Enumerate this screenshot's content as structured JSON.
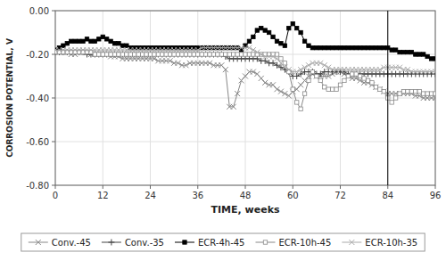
{
  "chart_data": {
    "type": "line",
    "x_label": "TIME, weeks",
    "y_label": "CORROSION POTENTIAL, V",
    "xlim": [
      0,
      96
    ],
    "ylim": [
      -0.8,
      0.0
    ],
    "xticks": [
      0,
      12,
      24,
      36,
      48,
      60,
      72,
      84,
      96
    ],
    "yticks": [
      {
        "value": 0.0,
        "label": "0.00"
      },
      {
        "value": -0.2,
        "label": "-0.20"
      },
      {
        "value": -0.4,
        "label": "-0.40"
      },
      {
        "value": -0.6,
        "label": "-0.60"
      },
      {
        "value": -0.8,
        "label": "-0.80"
      }
    ],
    "grid": true,
    "legend": "bottom",
    "vline_x": 84,
    "x": [
      0,
      1,
      2,
      3,
      4,
      5,
      6,
      7,
      8,
      9,
      10,
      11,
      12,
      13,
      14,
      15,
      16,
      17,
      18,
      19,
      20,
      21,
      22,
      23,
      24,
      25,
      26,
      27,
      28,
      29,
      30,
      31,
      32,
      33,
      34,
      35,
      36,
      37,
      38,
      39,
      40,
      41,
      42,
      43,
      44,
      45,
      46,
      47,
      48,
      49,
      50,
      51,
      52,
      53,
      54,
      55,
      56,
      57,
      58,
      59,
      60,
      61,
      62,
      63,
      64,
      65,
      66,
      67,
      68,
      69,
      70,
      71,
      72,
      73,
      74,
      75,
      76,
      77,
      78,
      79,
      80,
      81,
      82,
      83,
      84,
      85,
      86,
      87,
      88,
      89,
      90,
      91,
      92,
      93,
      94,
      95,
      96
    ],
    "series": [
      {
        "name": "Conv.-45",
        "color": "#888888",
        "marker": "x",
        "line_style": "solid",
        "values": [
          -0.19,
          -0.19,
          -0.19,
          -0.19,
          -0.2,
          -0.2,
          -0.19,
          -0.19,
          -0.19,
          -0.2,
          -0.2,
          -0.2,
          -0.2,
          -0.2,
          -0.21,
          -0.21,
          -0.21,
          -0.22,
          -0.22,
          -0.22,
          -0.22,
          -0.22,
          -0.22,
          -0.22,
          -0.22,
          -0.22,
          -0.23,
          -0.23,
          -0.23,
          -0.23,
          -0.24,
          -0.24,
          -0.25,
          -0.25,
          -0.24,
          -0.24,
          -0.24,
          -0.24,
          -0.24,
          -0.24,
          -0.25,
          -0.25,
          -0.25,
          -0.27,
          -0.44,
          -0.44,
          -0.38,
          -0.32,
          -0.3,
          -0.28,
          -0.28,
          -0.29,
          -0.31,
          -0.33,
          -0.34,
          -0.34,
          -0.36,
          -0.37,
          -0.38,
          -0.39,
          -0.37,
          -0.36,
          -0.34,
          -0.32,
          -0.3,
          -0.29,
          -0.3,
          -0.3,
          -0.3,
          -0.3,
          -0.29,
          -0.28,
          -0.28,
          -0.29,
          -0.3,
          -0.31,
          -0.31,
          -0.32,
          -0.33,
          -0.33,
          -0.34,
          -0.35,
          -0.36,
          -0.37,
          -0.38,
          -0.38,
          -0.38,
          -0.38,
          -0.38,
          -0.38,
          -0.38,
          -0.39,
          -0.39,
          -0.4,
          -0.4,
          -0.4,
          -0.4
        ]
      },
      {
        "name": "Conv.-35",
        "color": "#444444",
        "marker": "plus",
        "line_style": "solid",
        "values": [
          -0.19,
          -0.19,
          -0.19,
          -0.19,
          -0.19,
          -0.19,
          -0.19,
          -0.19,
          -0.2,
          -0.2,
          -0.2,
          -0.2,
          -0.2,
          -0.2,
          -0.2,
          -0.2,
          -0.2,
          -0.2,
          -0.2,
          -0.2,
          -0.2,
          -0.2,
          -0.2,
          -0.2,
          -0.2,
          -0.2,
          -0.2,
          -0.2,
          -0.2,
          -0.2,
          -0.2,
          -0.2,
          -0.2,
          -0.2,
          -0.2,
          -0.2,
          -0.2,
          -0.2,
          -0.2,
          -0.2,
          -0.2,
          -0.2,
          -0.2,
          -0.21,
          -0.22,
          -0.22,
          -0.22,
          -0.22,
          -0.22,
          -0.22,
          -0.22,
          -0.22,
          -0.23,
          -0.23,
          -0.24,
          -0.24,
          -0.25,
          -0.26,
          -0.27,
          -0.28,
          -0.3,
          -0.3,
          -0.29,
          -0.28,
          -0.28,
          -0.28,
          -0.29,
          -0.29,
          -0.28,
          -0.28,
          -0.28,
          -0.28,
          -0.28,
          -0.28,
          -0.29,
          -0.29,
          -0.29,
          -0.29,
          -0.29,
          -0.29,
          -0.29,
          -0.29,
          -0.29,
          -0.29,
          -0.29,
          -0.29,
          -0.29,
          -0.29,
          -0.29,
          -0.29,
          -0.29,
          -0.29,
          -0.29,
          -0.29,
          -0.29,
          -0.29,
          -0.29
        ]
      },
      {
        "name": "ECR-4h-45",
        "color": "#000000",
        "marker": "square",
        "line_style": "solid",
        "values": [
          -0.18,
          -0.17,
          -0.16,
          -0.15,
          -0.14,
          -0.14,
          -0.14,
          -0.14,
          -0.13,
          -0.14,
          -0.14,
          -0.13,
          -0.12,
          -0.13,
          -0.14,
          -0.15,
          -0.15,
          -0.16,
          -0.16,
          -0.17,
          -0.17,
          -0.17,
          -0.17,
          -0.17,
          -0.17,
          -0.17,
          -0.17,
          -0.17,
          -0.17,
          -0.17,
          -0.17,
          -0.17,
          -0.17,
          -0.17,
          -0.17,
          -0.17,
          -0.17,
          -0.17,
          -0.17,
          -0.17,
          -0.17,
          -0.17,
          -0.17,
          -0.17,
          -0.17,
          -0.17,
          -0.17,
          -0.18,
          -0.16,
          -0.14,
          -0.12,
          -0.09,
          -0.08,
          -0.09,
          -0.1,
          -0.12,
          -0.14,
          -0.15,
          -0.16,
          -0.08,
          -0.06,
          -0.08,
          -0.1,
          -0.14,
          -0.16,
          -0.17,
          -0.17,
          -0.17,
          -0.17,
          -0.17,
          -0.17,
          -0.17,
          -0.17,
          -0.17,
          -0.17,
          -0.17,
          -0.17,
          -0.17,
          -0.17,
          -0.17,
          -0.17,
          -0.17,
          -0.17,
          -0.17,
          -0.17,
          -0.18,
          -0.18,
          -0.19,
          -0.19,
          -0.19,
          -0.19,
          -0.2,
          -0.2,
          -0.2,
          -0.21,
          -0.22,
          -0.22
        ]
      },
      {
        "name": "ECR-10h-45",
        "color": "#888888",
        "marker": "square-open",
        "line_style": "solid",
        "values": [
          -0.19,
          -0.19,
          -0.19,
          -0.19,
          -0.19,
          -0.19,
          -0.19,
          -0.19,
          -0.19,
          -0.19,
          -0.2,
          -0.2,
          -0.2,
          -0.2,
          -0.2,
          -0.2,
          -0.2,
          -0.2,
          -0.2,
          -0.2,
          -0.2,
          -0.2,
          -0.2,
          -0.2,
          -0.2,
          -0.2,
          -0.2,
          -0.2,
          -0.2,
          -0.2,
          -0.2,
          -0.2,
          -0.2,
          -0.2,
          -0.2,
          -0.2,
          -0.2,
          -0.2,
          -0.2,
          -0.2,
          -0.2,
          -0.2,
          -0.2,
          -0.2,
          -0.2,
          -0.2,
          -0.2,
          -0.2,
          -0.2,
          -0.2,
          -0.2,
          -0.2,
          -0.2,
          -0.2,
          -0.2,
          -0.2,
          -0.2,
          -0.22,
          -0.24,
          -0.28,
          -0.36,
          -0.42,
          -0.45,
          -0.38,
          -0.32,
          -0.28,
          -0.3,
          -0.32,
          -0.35,
          -0.36,
          -0.36,
          -0.36,
          -0.34,
          -0.32,
          -0.3,
          -0.29,
          -0.29,
          -0.3,
          -0.31,
          -0.32,
          -0.33,
          -0.35,
          -0.36,
          -0.37,
          -0.4,
          -0.42,
          -0.4,
          -0.38,
          -0.37,
          -0.37,
          -0.37,
          -0.37,
          -0.37,
          -0.38,
          -0.38,
          -0.38,
          -0.38
        ]
      },
      {
        "name": "ECR-10h-35",
        "color": "#aaaaaa",
        "marker": "x",
        "line_style": "solid",
        "values": [
          -0.18,
          -0.18,
          -0.18,
          -0.18,
          -0.18,
          -0.18,
          -0.18,
          -0.18,
          -0.18,
          -0.18,
          -0.18,
          -0.18,
          -0.18,
          -0.18,
          -0.18,
          -0.18,
          -0.18,
          -0.18,
          -0.18,
          -0.18,
          -0.18,
          -0.18,
          -0.18,
          -0.18,
          -0.18,
          -0.18,
          -0.18,
          -0.18,
          -0.18,
          -0.18,
          -0.18,
          -0.18,
          -0.18,
          -0.18,
          -0.18,
          -0.18,
          -0.18,
          -0.17,
          -0.17,
          -0.17,
          -0.17,
          -0.17,
          -0.17,
          -0.17,
          -0.17,
          -0.17,
          -0.17,
          -0.17,
          -0.17,
          -0.17,
          -0.18,
          -0.19,
          -0.2,
          -0.21,
          -0.21,
          -0.21,
          -0.22,
          -0.24,
          -0.26,
          -0.27,
          -0.28,
          -0.28,
          -0.27,
          -0.26,
          -0.25,
          -0.24,
          -0.24,
          -0.24,
          -0.25,
          -0.26,
          -0.27,
          -0.27,
          -0.27,
          -0.27,
          -0.27,
          -0.27,
          -0.27,
          -0.27,
          -0.27,
          -0.27,
          -0.27,
          -0.27,
          -0.27,
          -0.26,
          -0.26,
          -0.26,
          -0.26,
          -0.26,
          -0.27,
          -0.27,
          -0.28,
          -0.28,
          -0.28,
          -0.28,
          -0.28,
          -0.28,
          -0.28
        ]
      }
    ]
  }
}
